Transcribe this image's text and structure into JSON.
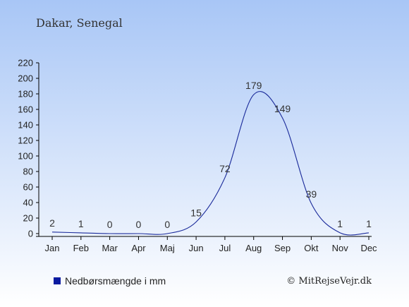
{
  "header": {
    "location": "Dakar, Senegal"
  },
  "legend": {
    "label": "Nedbørsmængde i mm",
    "swatch_color": "#0a1aa0"
  },
  "footer": {
    "copyright": "© MitRejseVejr.dk"
  },
  "colors": {
    "bg_top": "#a8c6f6",
    "bg_bottom": "#ffffff",
    "line": "#1a2a9a",
    "axis": "#000000",
    "text": "#222222",
    "title": "#333333"
  },
  "chart_data": {
    "type": "line",
    "categories": [
      "Jan",
      "Feb",
      "Mar",
      "Apr",
      "Maj",
      "Jun",
      "Jul",
      "Aug",
      "Sep",
      "Okt",
      "Nov",
      "Dec"
    ],
    "series": [
      {
        "name": "Nedbørsmængde i mm",
        "values": [
          2,
          1,
          0,
          0,
          0,
          15,
          72,
          179,
          149,
          39,
          1,
          1
        ]
      }
    ],
    "data_labels": [
      "2",
      "1",
      "0",
      "0",
      "0",
      "15",
      "72",
      "179",
      "149",
      "39",
      "1",
      "1"
    ],
    "ylim": [
      0,
      220
    ],
    "y_ticks": [
      "0",
      "20",
      "40",
      "60",
      "80",
      "100",
      "120",
      "140",
      "160",
      "180",
      "200",
      "220"
    ],
    "grid": false,
    "legend_position": "bottom-left"
  }
}
